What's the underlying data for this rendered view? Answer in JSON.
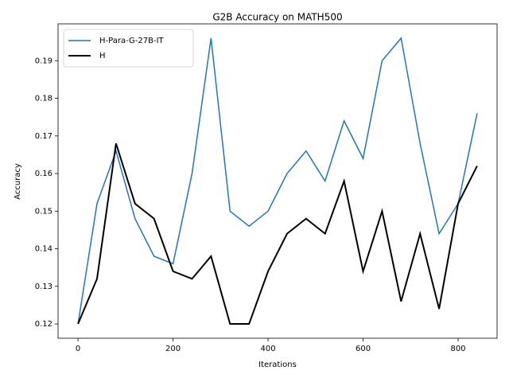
{
  "chart_data": {
    "type": "line",
    "title": "G2B Accuracy on MATH500",
    "xlabel": "Iterations",
    "ylabel": "Accuracy",
    "x": [
      0,
      40,
      80,
      120,
      160,
      200,
      240,
      280,
      320,
      360,
      400,
      440,
      480,
      520,
      560,
      600,
      640,
      680,
      720,
      760,
      800,
      840
    ],
    "series": [
      {
        "name": "H-Para-G-27B-IT",
        "color": "#1f77b4",
        "width": 1.5,
        "values": [
          0.12,
          0.152,
          0.166,
          0.148,
          0.138,
          0.136,
          0.16,
          0.196,
          0.15,
          0.146,
          0.15,
          0.16,
          0.166,
          0.158,
          0.174,
          0.164,
          0.19,
          0.196,
          0.168,
          0.144,
          0.152,
          0.176
        ]
      },
      {
        "name": "H",
        "color": "#000000",
        "width": 2,
        "values": [
          0.12,
          0.132,
          0.168,
          0.152,
          0.148,
          0.134,
          0.132,
          0.138,
          0.12,
          0.12,
          0.134,
          0.144,
          0.148,
          0.144,
          0.158,
          0.134,
          0.15,
          0.126,
          0.144,
          0.124,
          0.152,
          0.162
        ]
      }
    ],
    "xlim": [
      -42,
      882
    ],
    "ylim": [
      0.1162,
      0.1998
    ],
    "xticks": [
      0,
      200,
      400,
      600,
      800
    ],
    "yticks": [
      0.12,
      0.13,
      0.14,
      0.15,
      0.16,
      0.17,
      0.18,
      0.19
    ],
    "legend": "upper left"
  }
}
